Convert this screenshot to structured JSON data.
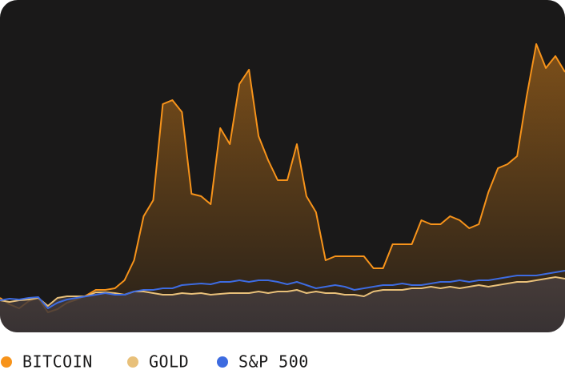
{
  "chart_data": {
    "type": "line",
    "ylim": [
      0,
      415
    ],
    "series": [
      {
        "name": "BITCOIN",
        "color": "#f7931a",
        "values": [
          43,
          35,
          30,
          39,
          43,
          25,
          29,
          37,
          41,
          46,
          53,
          53,
          55,
          65,
          90,
          145,
          165,
          285,
          290,
          275,
          173,
          170,
          160,
          255,
          235,
          310,
          328,
          245,
          215,
          190,
          190,
          235,
          170,
          150,
          90,
          95,
          95,
          95,
          95,
          80,
          80,
          110,
          110,
          110,
          140,
          135,
          135,
          145,
          140,
          130,
          135,
          175,
          205,
          210,
          220,
          295,
          360,
          330,
          345,
          325
        ]
      },
      {
        "name": "GOLD",
        "color": "#e8c07a",
        "values": [
          40,
          38,
          40,
          41,
          43,
          33,
          43,
          45,
          45,
          45,
          50,
          50,
          49,
          47,
          51,
          51,
          49,
          47,
          47,
          49,
          48,
          49,
          47,
          48,
          49,
          49,
          49,
          51,
          49,
          51,
          51,
          53,
          49,
          51,
          49,
          49,
          47,
          47,
          45,
          51,
          53,
          53,
          53,
          55,
          55,
          57,
          55,
          57,
          55,
          57,
          59,
          57,
          59,
          61,
          63,
          63,
          65,
          67,
          69,
          67
        ]
      },
      {
        "name": "S&P 500",
        "color": "#3d6be0",
        "values": [
          40,
          42,
          41,
          43,
          44,
          30,
          37,
          41,
          43,
          45,
          47,
          49,
          47,
          47,
          51,
          53,
          53,
          55,
          55,
          59,
          60,
          61,
          60,
          63,
          63,
          65,
          63,
          65,
          65,
          63,
          60,
          63,
          59,
          55,
          57,
          59,
          57,
          53,
          55,
          57,
          59,
          59,
          61,
          59,
          59,
          61,
          63,
          63,
          65,
          63,
          65,
          65,
          67,
          69,
          71,
          71,
          71,
          73,
          75,
          77
        ]
      }
    ]
  }
}
